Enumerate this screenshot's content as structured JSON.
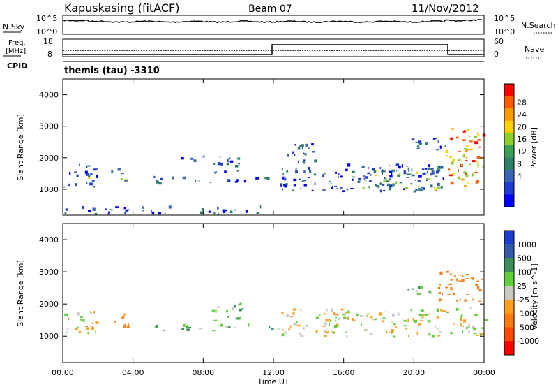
{
  "header": {
    "station": "Kapuskasing (fitACF)",
    "beam": "Beam 07",
    "date": "11/Nov/2012"
  },
  "noise_panel": {
    "left_label": "N.Sky",
    "left_ticks": [
      "10^5",
      "10^0"
    ],
    "right_ticks": [
      "10^5",
      "10^0"
    ],
    "right_label": "N.Search"
  },
  "freq_panel": {
    "left_label_1": "Freq.",
    "left_label_2": "[MHz]",
    "left_ticks": [
      "18",
      "8"
    ],
    "right_ticks": [
      "60",
      "0"
    ],
    "right_label": "Nave"
  },
  "cpid_label": "CPID",
  "program_label": "themis (tau) -3310",
  "power_colorbar": {
    "label": "Power [dB]",
    "ticks": [
      "28",
      "24",
      "20",
      "16",
      "12",
      "8",
      "4"
    ],
    "colors": [
      "#ff0000",
      "#ff5a00",
      "#ff9900",
      "#ffd000",
      "#8ccf2f",
      "#3d9e55",
      "#2e7f6a",
      "#3c64b4",
      "#1f3cd0",
      "#0000ff"
    ]
  },
  "velocity_colorbar": {
    "label": "Velocity [m s^-1]",
    "ticks": [
      "1000",
      "500",
      "100",
      "25",
      "-25",
      "-100",
      "-500",
      "-1000"
    ],
    "colors": [
      "#1f3ccd",
      "#3458a8",
      "#3d8f5a",
      "#5fcf3a",
      "#c8c8be",
      "#ff9f20",
      "#ff7a10",
      "#ff4a00",
      "#ff0000"
    ]
  },
  "ylabel": "Slant Range [km]",
  "y_ticks": [
    "4000",
    "3000",
    "2000",
    "1000"
  ],
  "x_ticks": [
    "00:00",
    "04:00",
    "08:00",
    "12:00",
    "16:00",
    "20:00",
    "00:00"
  ],
  "xlabel": "Time UT",
  "chart_data": [
    {
      "type": "heatmap",
      "title": "Power",
      "xlabel": "Time UT",
      "ylabel": "Slant Range [km]",
      "xlim": [
        0,
        24
      ],
      "ylim": [
        180,
        4500
      ],
      "colorbar_label": "Power [dB]",
      "colorbar_range": [
        0,
        30
      ],
      "regions": [
        {
          "t0": 0.0,
          "t1": 1.9,
          "r0": 1050,
          "r1": 1750,
          "level": "low"
        },
        {
          "t0": 1.0,
          "t1": 1.6,
          "r0": 1150,
          "r1": 1400,
          "level": "mid"
        },
        {
          "t0": 2.7,
          "t1": 3.7,
          "r0": 1200,
          "r1": 1650,
          "level": "mid"
        },
        {
          "t0": 5.1,
          "t1": 11.9,
          "r0": 1150,
          "r1": 1350,
          "level": "low"
        },
        {
          "t0": 6.7,
          "t1": 8.2,
          "r0": 1800,
          "r1": 2050,
          "level": "low"
        },
        {
          "t0": 8.4,
          "t1": 10.2,
          "r0": 1400,
          "r1": 2000,
          "level": "low"
        },
        {
          "t0": 12.2,
          "t1": 21.8,
          "r0": 900,
          "r1": 1750,
          "level": "low"
        },
        {
          "t0": 12.7,
          "t1": 14.5,
          "r0": 1700,
          "r1": 2400,
          "level": "low"
        },
        {
          "t0": 17.0,
          "t1": 21.5,
          "r0": 950,
          "r1": 1700,
          "level": "mid"
        },
        {
          "t0": 19.5,
          "t1": 21.8,
          "r0": 2200,
          "r1": 2600,
          "level": "low"
        },
        {
          "t0": 21.8,
          "t1": 24.0,
          "r0": 1000,
          "r1": 2900,
          "level": "high"
        },
        {
          "t0": 0.0,
          "t1": 11.9,
          "r0": 180,
          "r1": 400,
          "level": "low"
        }
      ]
    },
    {
      "type": "heatmap",
      "title": "Velocity",
      "xlabel": "Time UT",
      "ylabel": "Slant Range [km]",
      "xlim": [
        0,
        24
      ],
      "ylim": [
        180,
        4500
      ],
      "colorbar_label": "Velocity [m s^-1]",
      "colorbar_range": [
        -1000,
        1000
      ],
      "regions": [
        {
          "t0": 0.0,
          "t1": 1.9,
          "r0": 1050,
          "r1": 1750,
          "velocity": 0
        },
        {
          "t0": 1.1,
          "t1": 1.8,
          "r0": 1150,
          "r1": 1400,
          "velocity": -300
        },
        {
          "t0": 2.6,
          "t1": 3.8,
          "r0": 1200,
          "r1": 1650,
          "velocity": -300
        },
        {
          "t0": 5.1,
          "t1": 11.9,
          "r0": 1150,
          "r1": 1350,
          "velocity": 100
        },
        {
          "t0": 8.4,
          "t1": 10.2,
          "r0": 1400,
          "r1": 2000,
          "velocity": 80
        },
        {
          "t0": 12.2,
          "t1": 21.8,
          "r0": 950,
          "r1": 1800,
          "velocity": 0
        },
        {
          "t0": 19.5,
          "t1": 21.3,
          "r0": 2200,
          "r1": 2600,
          "velocity": 90
        },
        {
          "t0": 21.3,
          "t1": 24.0,
          "r0": 2000,
          "r1": 3000,
          "velocity": -300
        },
        {
          "t0": 21.8,
          "t1": 24.0,
          "r0": 1000,
          "r1": 1900,
          "velocity": 0
        }
      ]
    }
  ]
}
